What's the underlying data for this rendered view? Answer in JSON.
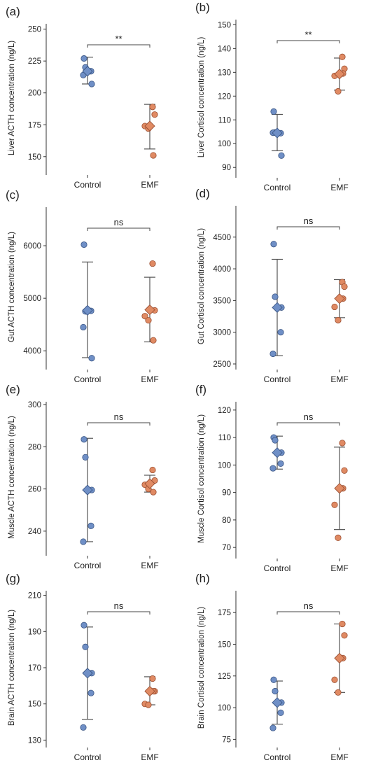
{
  "colors": {
    "control": "#6f8fc6",
    "control_edge": "#3b5684",
    "emf": "#e08a63",
    "emf_edge": "#9b5033"
  },
  "chart_data": [
    {
      "type": "scatter",
      "panel": "(a)",
      "ylabel": "Liver ACTH concentration (ng/L)",
      "categories": [
        "Control",
        "EMF"
      ],
      "ylim": [
        140,
        252
      ],
      "yticks": [
        150,
        175,
        200,
        225,
        250
      ],
      "series": [
        {
          "points": [
            227,
            220,
            217,
            214,
            207
          ],
          "mean": 217,
          "sd_low": 207,
          "sd_high": 228
        },
        {
          "points": [
            189,
            183,
            174,
            172,
            151
          ],
          "mean": 174,
          "sd_low": 156,
          "sd_high": 191
        }
      ],
      "significance": "**"
    },
    {
      "type": "scatter",
      "panel": "(b)",
      "ylabel": "Liver Cortisol concentration (ng/L)",
      "categories": [
        "Control",
        "EMF"
      ],
      "ylim": [
        88,
        151
      ],
      "yticks": [
        90,
        100,
        110,
        120,
        130,
        140,
        150
      ],
      "series": [
        {
          "points": [
            113.5,
            104.7,
            104.4,
            104.6,
            95
          ],
          "mean": 104.5,
          "sd_low": 97,
          "sd_high": 112.3
        },
        {
          "points": [
            136.5,
            131.5,
            128.5,
            122,
            129.5
          ],
          "mean": 129.3,
          "sd_low": 122.5,
          "sd_high": 136
        }
      ],
      "significance": "**"
    },
    {
      "type": "scatter",
      "panel": "(c)",
      "ylabel": "Gut ACTH concentration (ng/L)",
      "categories": [
        "Control",
        "EMF"
      ],
      "ylim": [
        3750,
        6680
      ],
      "yticks": [
        4000,
        5000,
        6000
      ],
      "series": [
        {
          "points": [
            6020,
            4750,
            4760,
            4450,
            3860
          ],
          "mean": 4770,
          "sd_low": 3870,
          "sd_high": 5690
        },
        {
          "points": [
            5660,
            4770,
            4660,
            4580,
            4200
          ],
          "mean": 4780,
          "sd_low": 4170,
          "sd_high": 5400
        }
      ],
      "significance": "ns"
    },
    {
      "type": "scatter",
      "panel": "(d)",
      "ylabel": "Gut Cortisol concentration (ng/L)",
      "categories": [
        "Control",
        "EMF"
      ],
      "ylim": [
        2500,
        4950
      ],
      "yticks": [
        2500,
        3000,
        3500,
        4000,
        4500
      ],
      "series": [
        {
          "points": [
            4390,
            3560,
            3000,
            2660,
            3390
          ],
          "mean": 3390,
          "sd_low": 2630,
          "sd_high": 4150
        },
        {
          "points": [
            3790,
            3720,
            3400,
            3190,
            3530
          ],
          "mean": 3530,
          "sd_low": 3230,
          "sd_high": 3830
        }
      ],
      "significance": "ns"
    },
    {
      "type": "scatter",
      "panel": "(e)",
      "ylabel": "Muscle ACTH concentration (ng/L)",
      "categories": [
        "Control",
        "EMF"
      ],
      "ylim": [
        231,
        300
      ],
      "yticks": [
        240,
        260,
        280,
        300
      ],
      "series": [
        {
          "points": [
            283.5,
            275,
            242.5,
            235,
            259.5
          ],
          "mean": 259.5,
          "sd_low": 235,
          "sd_high": 284
        },
        {
          "points": [
            269,
            264,
            262,
            260,
            258.5
          ],
          "mean": 262.5,
          "sd_low": 258.5,
          "sd_high": 266.5
        }
      ],
      "significance": "ns"
    },
    {
      "type": "scatter",
      "panel": "(f)",
      "ylabel": "Muscle Cortisol concentration (ng/L)",
      "categories": [
        "Control",
        "EMF"
      ],
      "ylim": [
        68,
        122
      ],
      "yticks": [
        70,
        80,
        90,
        100,
        110,
        120
      ],
      "series": [
        {
          "points": [
            110,
            109,
            100.5,
            98.8,
            104.5
          ],
          "mean": 104.5,
          "sd_low": 98.5,
          "sd_high": 110.5
        },
        {
          "points": [
            108,
            98,
            85.5,
            73.5,
            91.5
          ],
          "mean": 91.5,
          "sd_low": 76.5,
          "sd_high": 106.5
        }
      ],
      "significance": "ns"
    },
    {
      "type": "scatter",
      "panel": "(g)",
      "ylabel": "Brain ACTH concentration (ng/L)",
      "categories": [
        "Control",
        "EMF"
      ],
      "ylim": [
        129,
        211
      ],
      "yticks": [
        130,
        150,
        170,
        190,
        210
      ],
      "series": [
        {
          "points": [
            193.5,
            181.5,
            156,
            137,
            167
          ],
          "mean": 167,
          "sd_low": 141.5,
          "sd_high": 192.5
        },
        {
          "points": [
            164,
            157,
            150,
            149.5,
            157
          ],
          "mean": 157,
          "sd_low": 149.5,
          "sd_high": 165
        }
      ],
      "significance": "ns"
    },
    {
      "type": "scatter",
      "panel": "(h)",
      "ylabel": "Brain Cortisol concentration (ng/L)",
      "categories": [
        "Control",
        "EMF"
      ],
      "ylim": [
        73,
        190
      ],
      "yticks": [
        75,
        100,
        125,
        150,
        175
      ],
      "series": [
        {
          "points": [
            122,
            113,
            96,
            84,
            104
          ],
          "mean": 104,
          "sd_low": 87,
          "sd_high": 121
        },
        {
          "points": [
            166,
            157,
            122,
            112,
            139
          ],
          "mean": 139,
          "sd_low": 112,
          "sd_high": 166
        }
      ],
      "significance": "ns"
    }
  ]
}
